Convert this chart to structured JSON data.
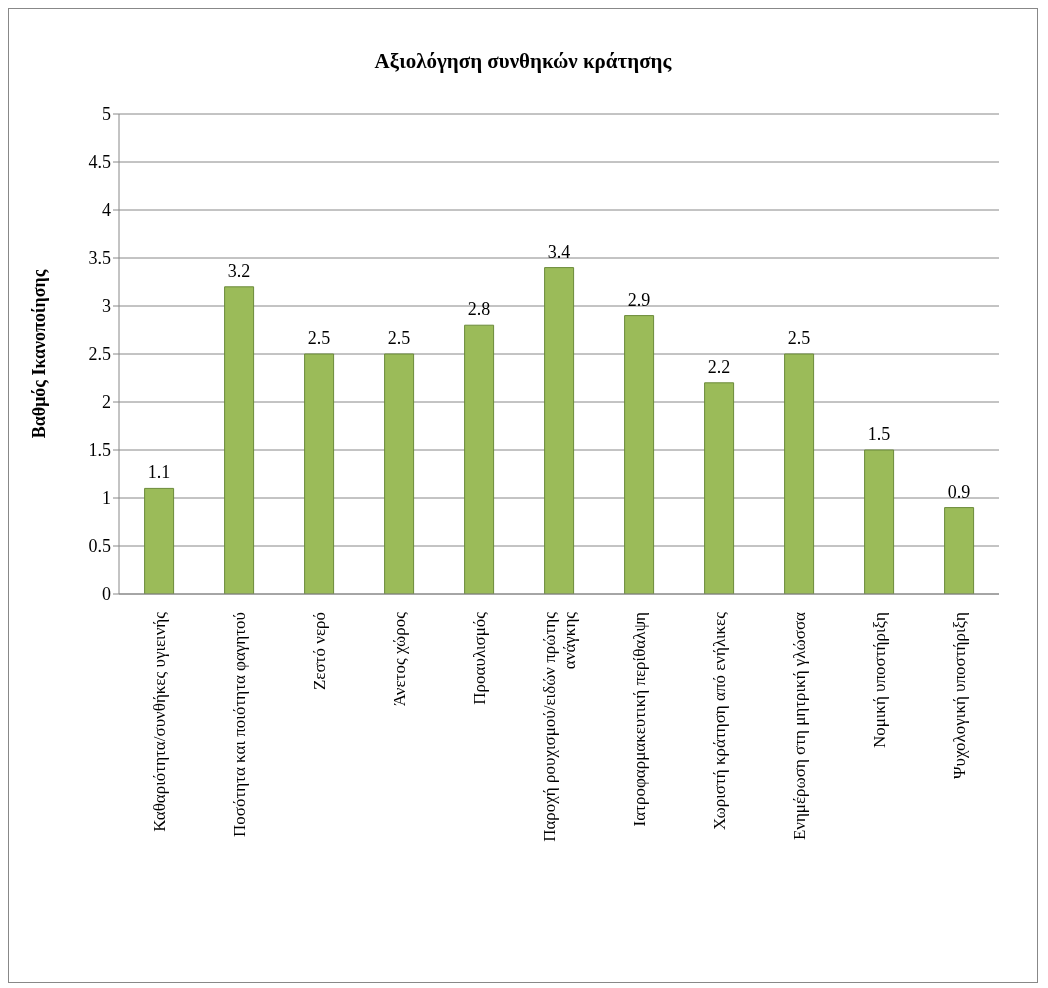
{
  "chart_data": {
    "type": "bar",
    "title": "Αξιολόγηση συνθηκών κράτησης",
    "ylabel": "Βαθμός Ικανοποίησης",
    "categories": [
      "Καθαριότητα/συνθήκες υγιεινής",
      "Ποσότητα και ποιότητα φαγητού",
      "Ζεστό νερό",
      "Άνετος χώρος",
      "Προαυλισμός",
      "Παροχή ρουχισμού/ειδών πρώτης ανάγκης",
      "Ιατροφαρμακευτική περίθαλψη",
      "Χωριστή κράτηση από ενήλικες",
      "Ενημέρωση στη μητρική γλώσσα",
      "Νομική υποστήριξη",
      "Ψυχολογική υποστήριξη"
    ],
    "values": [
      1.1,
      3.2,
      2.5,
      2.5,
      2.8,
      3.4,
      2.9,
      2.2,
      2.5,
      1.5,
      0.9
    ],
    "color": "#9bbb59",
    "ylim": [
      0,
      5
    ],
    "yticks": [
      0,
      0.5,
      1,
      1.5,
      2,
      2.5,
      3,
      3.5,
      4,
      4.5,
      5
    ],
    "grid": "y",
    "data_labels": true
  }
}
